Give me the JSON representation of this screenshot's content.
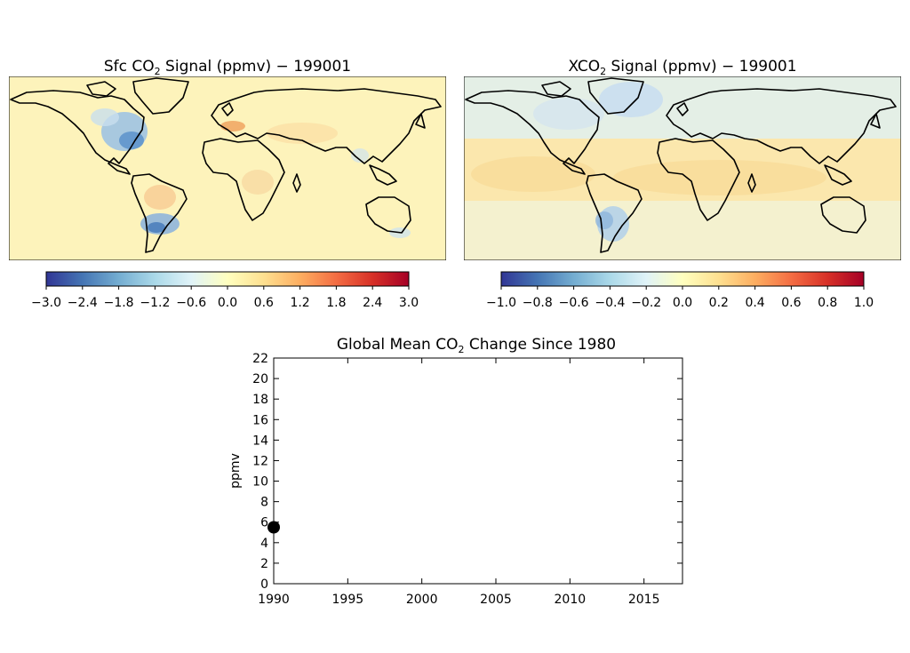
{
  "maps": [
    {
      "title_main": "Sfc CO",
      "title_sub": "2",
      "title_rest": " Signal (ppmv) − 199001",
      "colorbar_ticks": [
        "−3.0",
        "−2.4",
        "−1.8",
        "−1.2",
        "−0.6",
        "0.0",
        "0.6",
        "1.2",
        "1.8",
        "2.4",
        "3.0"
      ],
      "colorbar_range": [
        -3.0,
        3.0
      ],
      "colormap": [
        "#313695",
        "#4575b4",
        "#74add1",
        "#abd9e9",
        "#e0f3f8",
        "#ffffbf",
        "#fee090",
        "#fdae61",
        "#f46d43",
        "#d73027",
        "#a50026"
      ]
    },
    {
      "title_main": "XCO",
      "title_sub": "2",
      "title_rest": " Signal (ppmv) − 199001",
      "colorbar_ticks": [
        "−1.0",
        "−0.8",
        "−0.6",
        "−0.4",
        "−0.2",
        "0.0",
        "0.2",
        "0.4",
        "0.6",
        "0.8",
        "1.0"
      ],
      "colorbar_range": [
        -1.0,
        1.0
      ],
      "colormap": [
        "#313695",
        "#4575b4",
        "#74add1",
        "#abd9e9",
        "#e0f3f8",
        "#ffffbf",
        "#fee090",
        "#fdae61",
        "#f46d43",
        "#d73027",
        "#a50026"
      ]
    }
  ],
  "line_title_main": "Global Mean CO",
  "line_title_sub": "2",
  "line_title_rest": " Change Since 1980",
  "chart_data": {
    "type": "scatter",
    "title": "Global Mean CO2 Change Since 1980",
    "xlabel": "",
    "ylabel": "ppmv",
    "xlim": [
      1990,
      2017.6
    ],
    "ylim": [
      0,
      22
    ],
    "x_ticks": [
      "1990",
      "1995",
      "2000",
      "2005",
      "2010",
      "2015"
    ],
    "y_ticks": [
      "0",
      "2",
      "4",
      "6",
      "8",
      "10",
      "12",
      "14",
      "16",
      "18",
      "20",
      "22"
    ],
    "points": [
      {
        "x": 1990.0,
        "y": 5.5
      }
    ],
    "grid": false
  }
}
